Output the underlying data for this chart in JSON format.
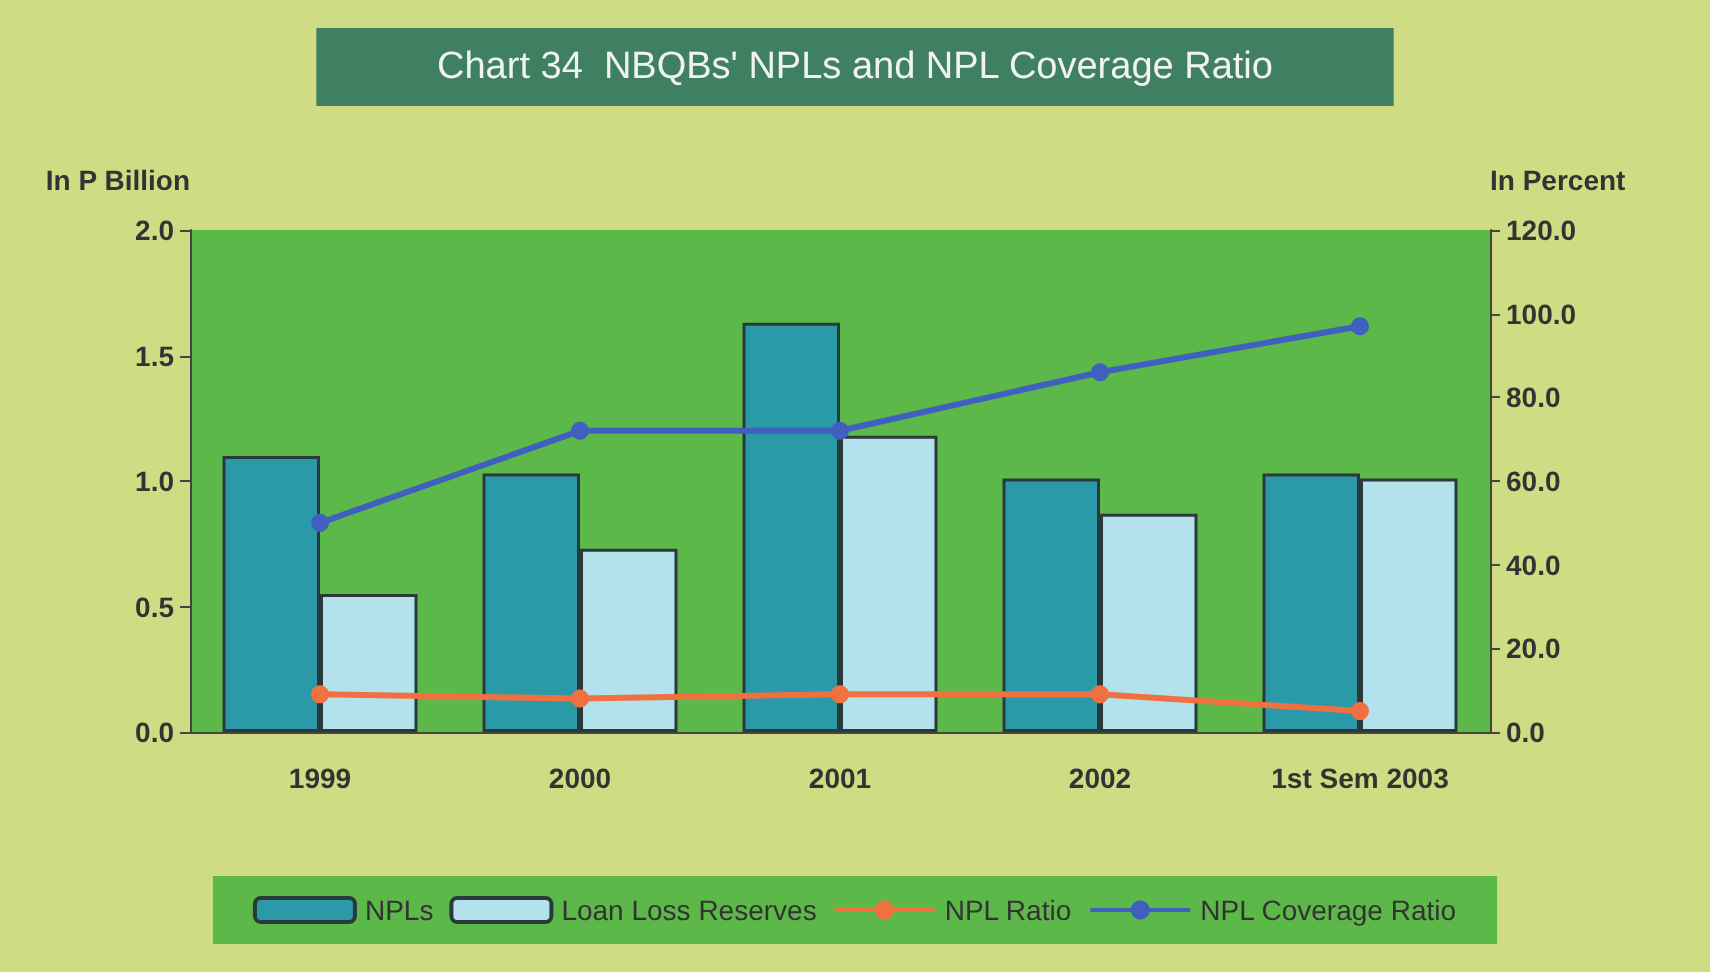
{
  "chart_data": {
    "type": "bar",
    "title": "Chart 34  NBQBs' NPLs and NPL Coverage Ratio",
    "ylabel": "In P Billion",
    "y2label": "In Percent",
    "categories": [
      "1999",
      "2000",
      "2001",
      "2002",
      "1st Sem 2003"
    ],
    "series": [
      {
        "name": "NPLs",
        "color": "#2a9aa8",
        "values": [
          1.1,
          1.03,
          1.63,
          1.01,
          1.03
        ]
      },
      {
        "name": "Loan Loss Reserves",
        "color": "#b4e2ec",
        "values": [
          0.55,
          0.73,
          1.18,
          0.87,
          1.01
        ]
      },
      {
        "name": "NPL Ratio",
        "type": "line",
        "axis": "y2",
        "color": "#f07040",
        "values": [
          9,
          8,
          9,
          9,
          5
        ]
      },
      {
        "name": "NPL Coverage Ratio",
        "type": "line",
        "axis": "y2",
        "color": "#4060c0",
        "values": [
          50,
          72,
          72,
          86,
          97
        ]
      }
    ],
    "ylim": [
      0,
      2.0
    ],
    "yticks": [
      {
        "value": 0,
        "label": "0.0"
      },
      {
        "value": 0.5,
        "label": "0.5"
      },
      {
        "value": 1,
        "label": "1.0"
      },
      {
        "value": 1.5,
        "label": "1.5"
      },
      {
        "value": 2,
        "label": "2.0"
      }
    ],
    "y2lim": [
      0,
      120
    ],
    "y2ticks": [
      {
        "value": 0,
        "label": "0.0"
      },
      {
        "value": 20,
        "label": "20.0"
      },
      {
        "value": 40,
        "label": "40.0"
      },
      {
        "value": 60,
        "label": "60.0"
      },
      {
        "value": 80,
        "label": "80.0"
      },
      {
        "value": 100,
        "label": "100.0"
      },
      {
        "value": 120,
        "label": "120.0"
      }
    ],
    "grid": false,
    "legend": "bottom",
    "marker": "circle",
    "line_style": "solid"
  }
}
